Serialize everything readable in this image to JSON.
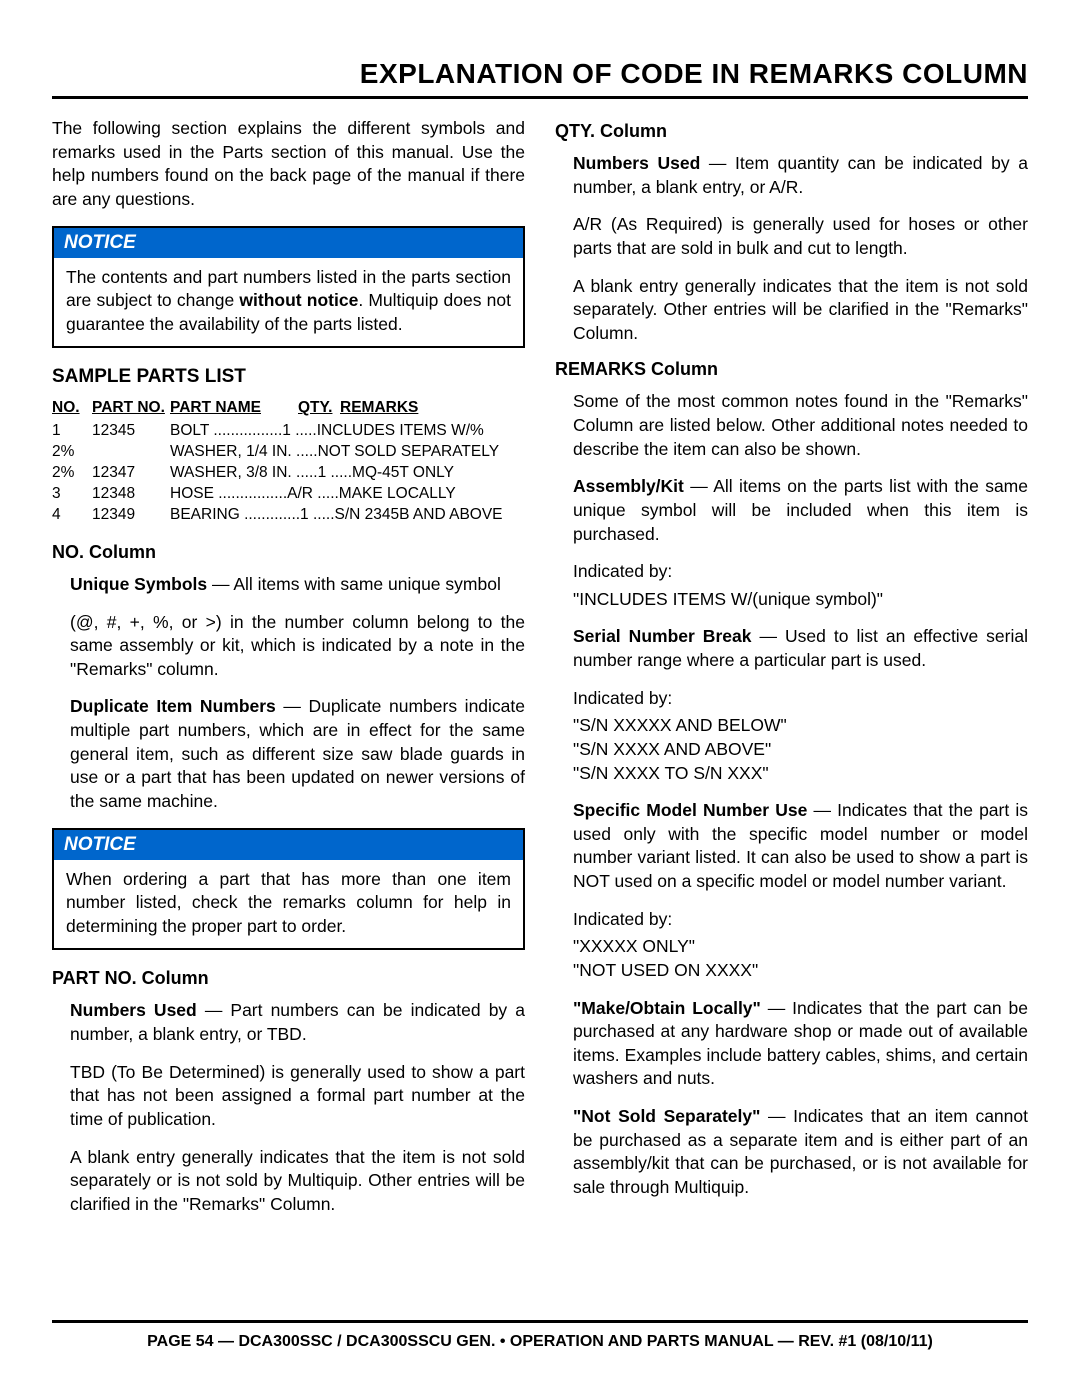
{
  "page_title": "EXPLANATION OF CODE IN REMARKS COLUMN",
  "intro": "The following section explains the different symbols and remarks used in the Parts section of this manual. Use the help numbers found on the back page of the manual if there are any questions.",
  "notice_label": "NOTICE",
  "notice1_a": "The contents and part numbers listed in the parts section are subject to change ",
  "notice1_b": "without notice",
  "notice1_c": ". Multiquip does not guarantee the availability of the parts listed.",
  "sample_heading": "SAMPLE PARTS LIST",
  "table": {
    "headers": {
      "no": "NO.",
      "partno": "PART NO.",
      "partname": "PART NAME",
      "qty": "QTY.",
      "remarks": "REMARKS"
    },
    "rows": [
      {
        "no": "1",
        "partno": "12345",
        "name": "BOLT",
        "qty": "1",
        "remarks": "INCLUDES ITEMS W/%"
      },
      {
        "no": "2%",
        "partno": "",
        "name": "WASHER, 1/4 IN.",
        "qty": "",
        "remarks": "NOT SOLD SEPARATELY"
      },
      {
        "no": "2%",
        "partno": "12347",
        "name": "WASHER, 3/8 IN.",
        "qty": "1",
        "remarks": "MQ-45T ONLY"
      },
      {
        "no": "3",
        "partno": "12348",
        "name": "HOSE",
        "qty": "A/R",
        "remarks": "MAKE LOCALLY"
      },
      {
        "no": "4",
        "partno": "12349",
        "name": "BEARING",
        "qty": "1",
        "remarks": "S/N 2345B AND ABOVE"
      }
    ]
  },
  "no_col_heading": "NO. Column",
  "no_unique_term": "Unique Symbols",
  "no_unique_body": " — All items with same unique symbol",
  "no_unique_p2": "(@, #, +, %, or >) in the number column belong to the same assembly or kit, which is indicated by a note in the \"Remarks\" column.",
  "no_dup_term": "Duplicate Item Numbers",
  "no_dup_body": " — Duplicate numbers indicate multiple part numbers, which are in effect for the same general item, such as different size saw blade guards in use or a part that has been updated on newer versions of the same machine.",
  "notice2": "When ordering a part that has more than one item number listed, check the remarks column for help in determining the proper part to order.",
  "partno_heading": "PART NO. Column",
  "partno_term": "Numbers Used",
  "partno_body": " — Part numbers can be indicated by a number, a blank entry, or TBD.",
  "partno_p2": "TBD (To Be Determined) is generally used to show a part that has not been assigned a formal part number at the time of publication.",
  "partno_p3": "A blank entry generally indicates that the item is not sold separately or is not sold by Multiquip. Other entries will be clarified in the \"Remarks\" Column.",
  "qty_heading": "QTY. Column",
  "qty_term": "Numbers Used",
  "qty_body": " — Item quantity can be indicated by a number, a blank entry, or A/R.",
  "qty_p2": "A/R (As Required) is generally used for hoses or other parts that are sold in bulk and cut to length.",
  "qty_p3": "A blank entry generally indicates that the item is not sold separately. Other entries will be clarified in the \"Remarks\" Column.",
  "rem_heading": "REMARKS Column",
  "rem_intro": "Some of the most common notes found in the \"Remarks\" Column are listed below. Other additional notes needed to describe the item can also be shown.",
  "rem_asm_term": "Assembly/Kit",
  "rem_asm_body": " — All items on the parts list with the same unique symbol will be included when this item is purchased.",
  "indicated_by": "Indicated by:",
  "rem_asm_ex": "\"INCLUDES ITEMS W/(unique symbol)\"",
  "rem_sn_term": "Serial Number Break",
  "rem_sn_body": " — Used to list an effective serial number range where a particular part is used.",
  "rem_sn_ex1": "\"S/N XXXXX AND BELOW\"",
  "rem_sn_ex2": "\"S/N XXXX AND ABOVE\"",
  "rem_sn_ex3": "\"S/N XXXX TO S/N XXX\"",
  "rem_model_term": "Specific Model Number Use",
  "rem_model_body": " — Indicates that the part is used only with the specific model number or model number variant listed. It can also be used to show a part is NOT used on a specific model or model number variant.",
  "rem_model_ex1": "\"XXXXX ONLY\"",
  "rem_model_ex2": "\"NOT USED ON XXXX\"",
  "rem_make_term": "\"Make/Obtain Locally\"",
  "rem_make_body": " — Indicates that the part can be purchased at any hardware shop or made out of available items. Examples include battery cables, shims, and certain washers and nuts.",
  "rem_nss_term": "\"Not Sold Separately\"",
  "rem_nss_body": " — Indicates that an item cannot be purchased as a separate item and is either part of an assembly/kit that can be purchased, or is not available for sale through Multiquip.",
  "footer": "PAGE 54 — DCA300SSC / DCA300SSCU GEN. • OPERATION AND PARTS MANUAL — REV. #1 (08/10/11)",
  "colors": {
    "notice_bg": "#0066cc",
    "text": "#000000",
    "bg": "#ffffff"
  }
}
